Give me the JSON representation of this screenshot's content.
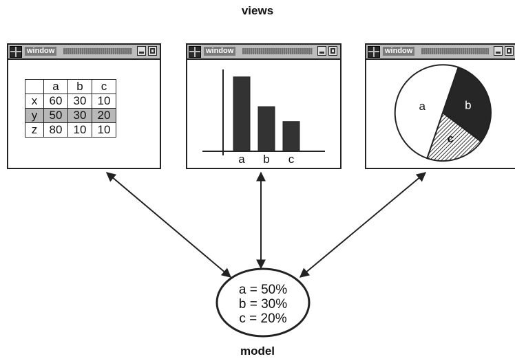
{
  "views_title": "views",
  "model_title": "model",
  "window_label": "window",
  "table": {
    "columns": [
      "a",
      "b",
      "c"
    ],
    "rows": [
      {
        "label": "x",
        "values": [
          "60",
          "30",
          "10"
        ]
      },
      {
        "label": "y",
        "values": [
          "50",
          "30",
          "20"
        ]
      },
      {
        "label": "z",
        "values": [
          "80",
          "10",
          "10"
        ]
      }
    ],
    "highlighted_row": "y"
  },
  "chart_data": [
    {
      "type": "bar",
      "categories": [
        "a",
        "b",
        "c"
      ],
      "values": [
        50,
        30,
        20
      ],
      "ylim": [
        0,
        55
      ]
    },
    {
      "type": "pie",
      "labels": [
        "a",
        "b",
        "c"
      ],
      "values": [
        50,
        30,
        20
      ]
    }
  ],
  "model": {
    "lines": [
      "a = 50%",
      "b = 30%",
      "c = 20%"
    ]
  },
  "colors": {
    "ink": "#222222",
    "bar_fill": "#333333",
    "pie_b": "#262626",
    "highlight_row": "#b8b8b8",
    "titlebar": "#bdbdbd"
  }
}
